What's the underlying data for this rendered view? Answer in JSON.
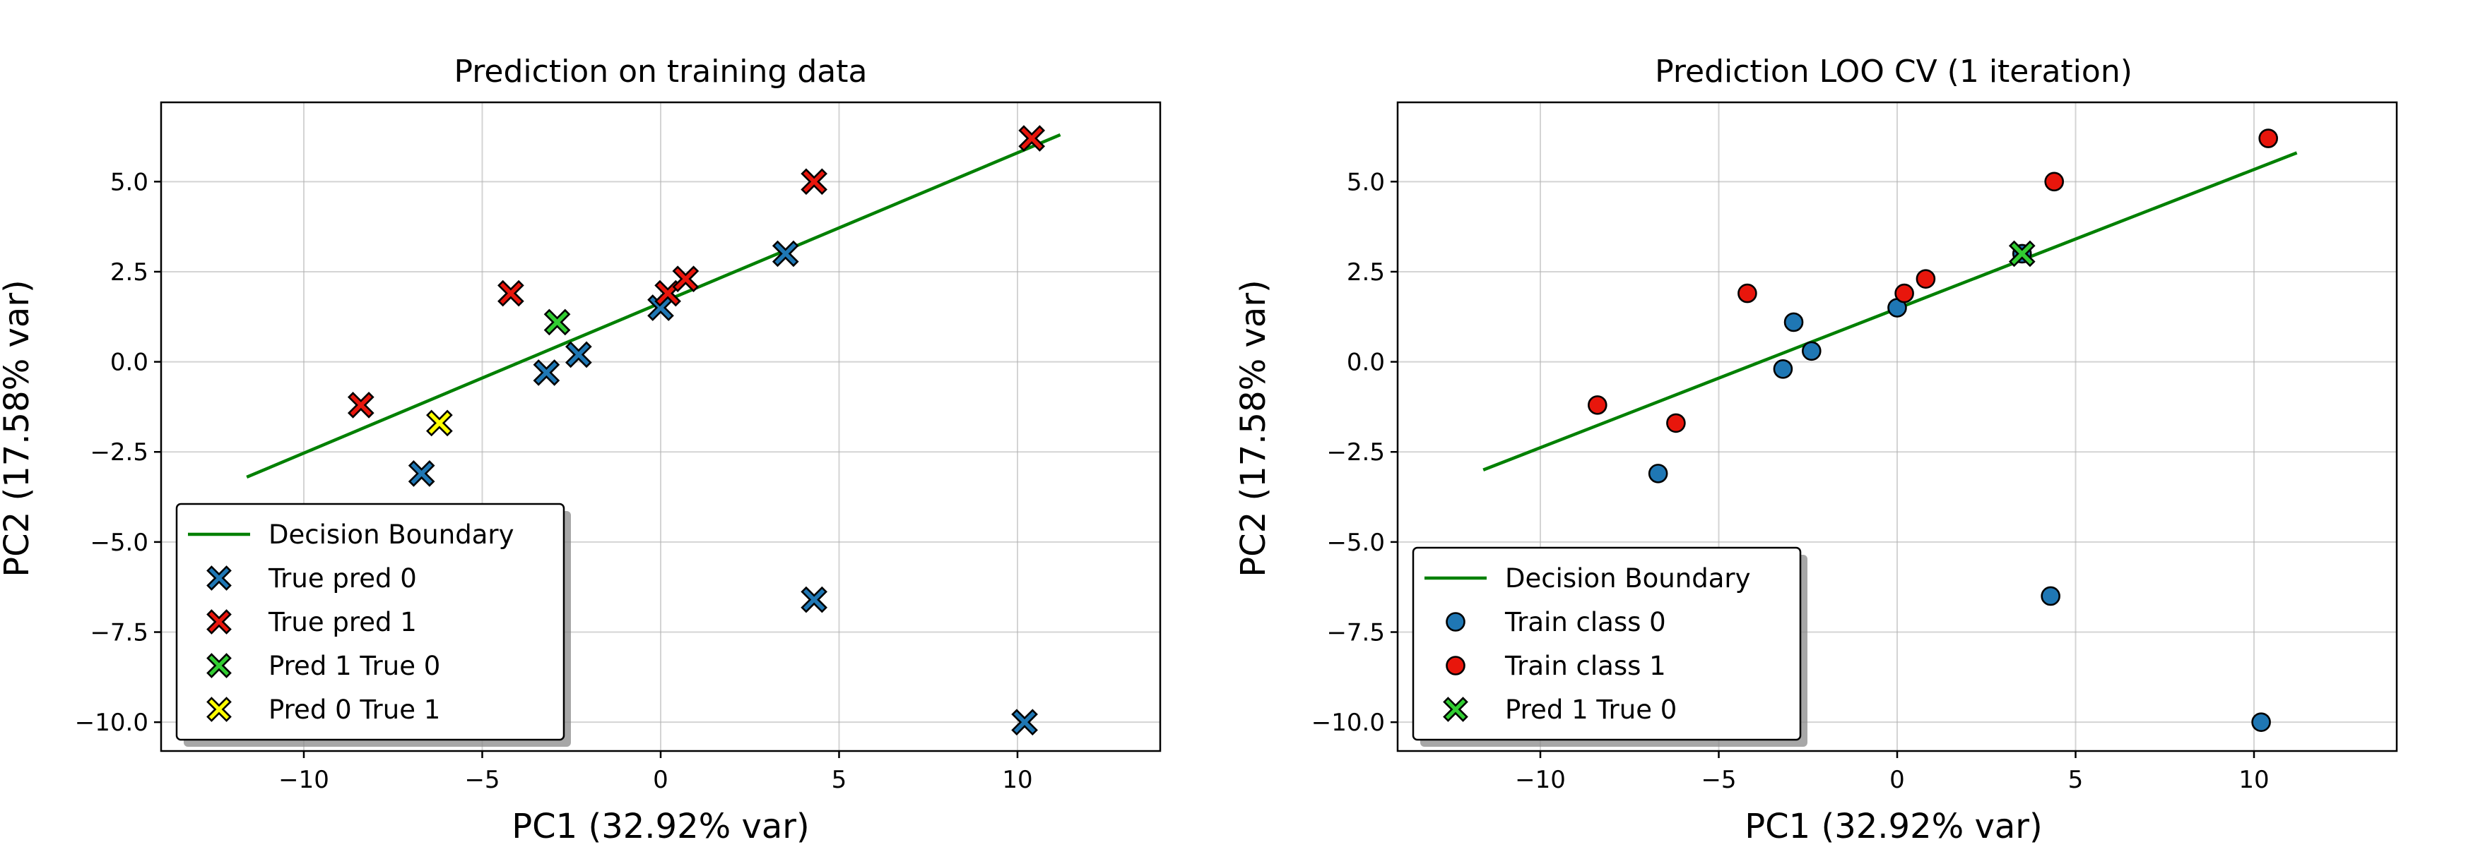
{
  "chart_data": [
    {
      "type": "scatter",
      "title": "Prediction on training data",
      "xlabel": "PC1 (32.92% var)",
      "ylabel": "PC2 (17.58% var)",
      "xlim": [
        -14,
        14
      ],
      "ylim": [
        -10.8,
        7.2
      ],
      "xticks": [
        -10,
        -5,
        0,
        5,
        10
      ],
      "xtick_labels": [
        "−10",
        "−5",
        "0",
        "5",
        "10"
      ],
      "yticks": [
        -10.0,
        -7.5,
        -5.0,
        -2.5,
        0.0,
        2.5,
        5.0
      ],
      "ytick_labels": [
        "−10.0",
        "−7.5",
        "−5.0",
        "−2.5",
        "0.0",
        "2.5",
        "5.0"
      ],
      "grid": true,
      "legend_position": "lower-left",
      "line": {
        "name": "Decision Boundary",
        "color": "#008000",
        "x": [
          -11.6,
          11.2
        ],
        "y": [
          -3.2,
          6.3
        ]
      },
      "series": [
        {
          "name": "True pred 0",
          "marker": "x-filled",
          "color": "#1f77b4",
          "points": [
            {
              "x": -6.7,
              "y": -3.1
            },
            {
              "x": -3.2,
              "y": -0.3
            },
            {
              "x": -2.3,
              "y": 0.2
            },
            {
              "x": 0.0,
              "y": 1.5
            },
            {
              "x": 3.5,
              "y": 3.0
            },
            {
              "x": 4.3,
              "y": -6.6
            },
            {
              "x": 10.2,
              "y": -10.0
            }
          ]
        },
        {
          "name": "True pred 1",
          "marker": "x-filled",
          "color": "#e8160c",
          "points": [
            {
              "x": -8.4,
              "y": -1.2
            },
            {
              "x": -4.2,
              "y": 1.9
            },
            {
              "x": 0.2,
              "y": 1.9
            },
            {
              "x": 0.7,
              "y": 2.3
            },
            {
              "x": 4.3,
              "y": 5.0
            },
            {
              "x": 10.4,
              "y": 6.2
            }
          ]
        },
        {
          "name": "Pred 1 True 0",
          "marker": "x-filled",
          "color": "#32cd32",
          "points": [
            {
              "x": -2.9,
              "y": 1.1
            }
          ]
        },
        {
          "name": "Pred 0 True 1",
          "marker": "x-filled",
          "color": "#ffff00",
          "points": [
            {
              "x": -6.2,
              "y": -1.7
            }
          ]
        }
      ]
    },
    {
      "type": "scatter",
      "title": "Prediction LOO CV (1 iteration)",
      "xlabel": "PC1 (32.92% var)",
      "ylabel": "PC2 (17.58% var)",
      "xlim": [
        -14,
        14
      ],
      "ylim": [
        -10.8,
        7.2
      ],
      "xticks": [
        -10,
        -5,
        0,
        5,
        10
      ],
      "xtick_labels": [
        "−10",
        "−5",
        "0",
        "5",
        "10"
      ],
      "yticks": [
        -10.0,
        -7.5,
        -5.0,
        -2.5,
        0.0,
        2.5,
        5.0
      ],
      "ytick_labels": [
        "−10.0",
        "−7.5",
        "−5.0",
        "−2.5",
        "0.0",
        "2.5",
        "5.0"
      ],
      "grid": true,
      "legend_position": "lower-left",
      "line": {
        "name": "Decision Boundary",
        "color": "#008000",
        "x": [
          -11.6,
          11.2
        ],
        "y": [
          -3.0,
          5.8
        ]
      },
      "series": [
        {
          "name": "Train class 0",
          "marker": "circle",
          "color": "#1f77b4",
          "points": [
            {
              "x": -6.7,
              "y": -3.1
            },
            {
              "x": -3.2,
              "y": -0.2
            },
            {
              "x": -2.9,
              "y": 1.1
            },
            {
              "x": -2.4,
              "y": 0.3
            },
            {
              "x": 0.0,
              "y": 1.5
            },
            {
              "x": 3.5,
              "y": 3.0
            },
            {
              "x": 4.3,
              "y": -6.5
            },
            {
              "x": 10.2,
              "y": -10.0
            }
          ]
        },
        {
          "name": "Train class 1",
          "marker": "circle",
          "color": "#e8160c",
          "points": [
            {
              "x": -8.4,
              "y": -1.2
            },
            {
              "x": -6.2,
              "y": -1.7
            },
            {
              "x": -4.2,
              "y": 1.9
            },
            {
              "x": 0.2,
              "y": 1.9
            },
            {
              "x": 0.8,
              "y": 2.3
            },
            {
              "x": 4.4,
              "y": 5.0
            },
            {
              "x": 10.4,
              "y": 6.2
            }
          ]
        },
        {
          "name": "Pred 1 True 0",
          "marker": "x-filled",
          "color": "#32cd32",
          "points": [
            {
              "x": 3.5,
              "y": 3.0
            }
          ]
        }
      ]
    }
  ]
}
